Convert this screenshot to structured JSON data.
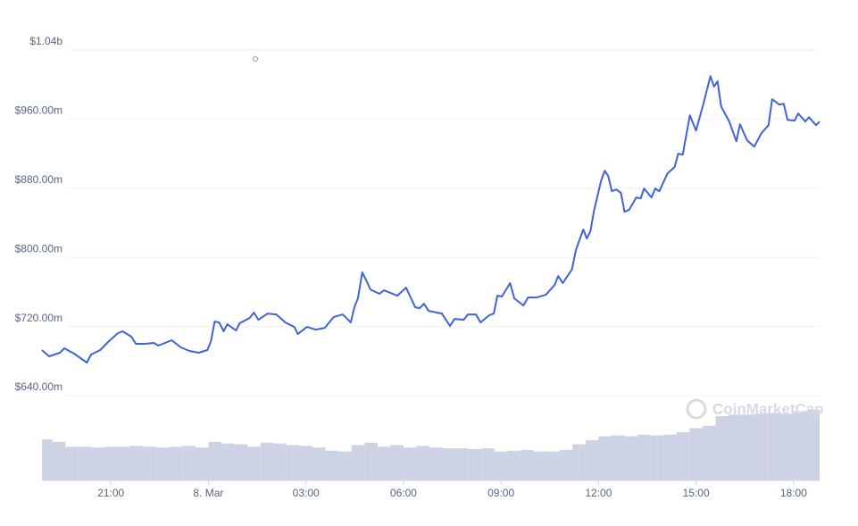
{
  "chart_data": {
    "type": "line",
    "watermark": "CoinMarketCap",
    "xlim": [
      18.88,
      42.8
    ],
    "xticks": [
      {
        "value": 21,
        "label": "21:00"
      },
      {
        "value": 24,
        "label": "8. Mar"
      },
      {
        "value": 27,
        "label": "03:00"
      },
      {
        "value": 30,
        "label": "06:00"
      },
      {
        "value": 33,
        "label": "09:00"
      },
      {
        "value": 36,
        "label": "12:00"
      },
      {
        "value": 39,
        "label": "15:00"
      },
      {
        "value": 42,
        "label": "18:00"
      }
    ],
    "ylim": [
      640,
      1040
    ],
    "yticks": [
      {
        "value": 640,
        "label": "$640.00m"
      },
      {
        "value": 720,
        "label": "$720.00m"
      },
      {
        "value": 800,
        "label": "$800.00m"
      },
      {
        "value": 880,
        "label": "$880.00m"
      },
      {
        "value": 960,
        "label": "$960.00m"
      },
      {
        "value": 1040,
        "label": "$1.04b"
      }
    ],
    "grid": true,
    "x": [
      18.88,
      19.1,
      19.43,
      19.57,
      19.87,
      20.26,
      20.39,
      20.67,
      20.94,
      21.22,
      21.36,
      21.63,
      21.77,
      22.05,
      22.32,
      22.46,
      22.87,
      23.15,
      23.42,
      23.7,
      23.97,
      24.08,
      24.19,
      24.33,
      24.47,
      24.58,
      24.85,
      24.96,
      25.27,
      25.4,
      25.54,
      25.82,
      26.09,
      26.37,
      26.64,
      26.75,
      27.03,
      27.3,
      27.58,
      27.85,
      28.13,
      28.38,
      28.49,
      28.6,
      28.73,
      28.87,
      28.98,
      29.26,
      29.4,
      29.81,
      30.08,
      30.36,
      30.5,
      30.63,
      30.77,
      31.18,
      31.43,
      31.57,
      31.85,
      31.98,
      32.23,
      32.37,
      32.64,
      32.78,
      32.89,
      33.03,
      33.28,
      33.41,
      33.69,
      33.83,
      34.1,
      34.38,
      34.65,
      34.76,
      34.9,
      35.18,
      35.31,
      35.53,
      35.64,
      35.75,
      35.86,
      36.08,
      36.19,
      36.3,
      36.41,
      36.55,
      36.69,
      36.8,
      36.94,
      37.16,
      37.3,
      37.4,
      37.63,
      37.74,
      37.87,
      38.12,
      38.34,
      38.45,
      38.59,
      38.81,
      39.0,
      39.22,
      39.44,
      39.55,
      39.66,
      39.77,
      40.02,
      40.24,
      40.35,
      40.57,
      40.79,
      41.01,
      41.23,
      41.34,
      41.56,
      41.7,
      41.81,
      42.03,
      42.14,
      42.36,
      42.47,
      42.69,
      42.8
    ],
    "series": [
      {
        "color": "#3f63d8",
        "values": [
          692.7,
          685.5,
          689.6,
          694.8,
          688.6,
          678.2,
          687.5,
          692.7,
          703.0,
          712.3,
          714.4,
          708.2,
          699.9,
          699.9,
          701.0,
          697.9,
          704.1,
          695.8,
          691.7,
          689.6,
          692.7,
          703.0,
          725.7,
          724.7,
          714.4,
          722.6,
          715.4,
          723.7,
          729.9,
          736.1,
          727.8,
          735.0,
          734.0,
          724.7,
          719.5,
          711.3,
          719.5,
          716.4,
          718.5,
          730.9,
          734.0,
          724.7,
          742.3,
          752.6,
          782.6,
          772.2,
          762.9,
          757.8,
          761.9,
          755.7,
          765.0,
          742.3,
          741.2,
          746.4,
          738.1,
          735.0,
          720.6,
          728.8,
          727.8,
          734.0,
          734.0,
          724.7,
          733.0,
          735.0,
          755.7,
          754.7,
          770.2,
          752.6,
          744.3,
          753.6,
          753.6,
          756.7,
          768.1,
          778.4,
          770.2,
          785.7,
          809.4,
          832.2,
          821.8,
          830.1,
          853.9,
          889.0,
          900.3,
          894.1,
          876.6,
          878.6,
          874.5,
          852.8,
          854.9,
          869.4,
          868.3,
          879.7,
          869.4,
          879.7,
          876.6,
          897.2,
          904.5,
          920.0,
          918.9,
          964.4,
          946.8,
          976.8,
          1009.8,
          997.5,
          1003.7,
          974.7,
          957.2,
          934.4,
          954.1,
          935.5,
          928.2,
          943.7,
          953.0,
          983.0,
          976.8,
          977.8,
          959.2,
          958.2,
          966.5,
          957.2,
          962.3,
          953.0,
          957.2
        ]
      }
    ],
    "volume": {
      "color": "#cdd3e4",
      "ylim": [
        0,
        100
      ],
      "x": [
        19.0,
        19.4,
        19.8,
        20.2,
        20.6,
        21.0,
        21.4,
        21.8,
        22.2,
        22.6,
        23.0,
        23.4,
        23.8,
        24.2,
        24.6,
        25.0,
        25.4,
        25.8,
        26.2,
        26.6,
        27.0,
        27.4,
        27.8,
        28.2,
        28.6,
        29.0,
        29.4,
        29.8,
        30.2,
        30.6,
        31.0,
        31.4,
        31.8,
        32.2,
        32.6,
        33.0,
        33.4,
        33.8,
        34.2,
        34.6,
        35.0,
        35.4,
        35.8,
        36.2,
        36.6,
        37.0,
        37.4,
        37.8,
        38.2,
        38.6,
        39.0,
        39.4,
        39.8,
        40.2,
        40.6,
        41.0,
        41.4,
        41.8,
        42.2,
        42.6
      ],
      "values": [
        51,
        48,
        42,
        42,
        41,
        42,
        42,
        43,
        42,
        41,
        42,
        43,
        41,
        48,
        46,
        45,
        42,
        47,
        46,
        44,
        43,
        41,
        37,
        36,
        44,
        47,
        42,
        44,
        41,
        43,
        41,
        40,
        40,
        39,
        40,
        36,
        37,
        38,
        36,
        36,
        38,
        45,
        50,
        55,
        56,
        55,
        57,
        56,
        57,
        60,
        65,
        68,
        80,
        82,
        82,
        83,
        84,
        83,
        86,
        88
      ]
    }
  }
}
